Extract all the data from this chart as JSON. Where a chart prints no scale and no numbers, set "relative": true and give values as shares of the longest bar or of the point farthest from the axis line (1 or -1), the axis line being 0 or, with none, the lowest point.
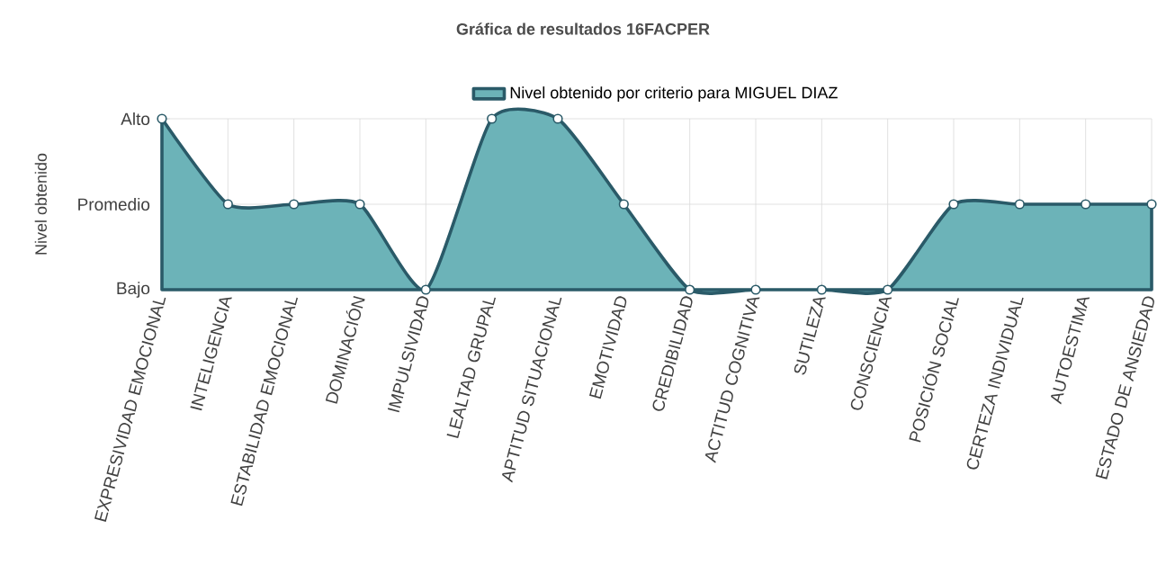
{
  "chart_data": {
    "type": "area",
    "title": "Gráfica de resultados 16FACPER",
    "ylabel": "Nivel obtenido",
    "relative": true,
    "categories": [
      "EXPRESIVIDAD EMOCIONAL",
      "INTELIGENCIA",
      "ESTABILIDAD EMOCIONAL",
      "DOMINACIÓN",
      "IMPULSIVIDAD",
      "LEALTAD GRUPAL",
      "APTITUD SITUACIONAL",
      "EMOTIVIDAD",
      "CREDIBILIDAD",
      "ACTITUD COGNITIVA",
      "SUTILEZA",
      "CONSCIENCIA",
      "POSICIÓN SOCIAL",
      "CERTEZA INDIVIDUAL",
      "AUTOESTIMA",
      "ESTADO DE ANSIEDAD"
    ],
    "series": [
      {
        "name": "Nivel obtenido por criterio para MIGUEL DIAZ",
        "color": "#6cb3b8",
        "values": [
          1,
          0.5,
          0.5,
          0.5,
          0,
          1,
          1,
          0.5,
          0,
          0,
          0,
          0,
          0.5,
          0.5,
          0.5,
          0.5
        ]
      }
    ],
    "annotations": [
      "Bajo",
      "Promedio",
      "Alto"
    ],
    "grid": true,
    "legend": "top",
    "marker": "circle",
    "line_style": "solid"
  }
}
